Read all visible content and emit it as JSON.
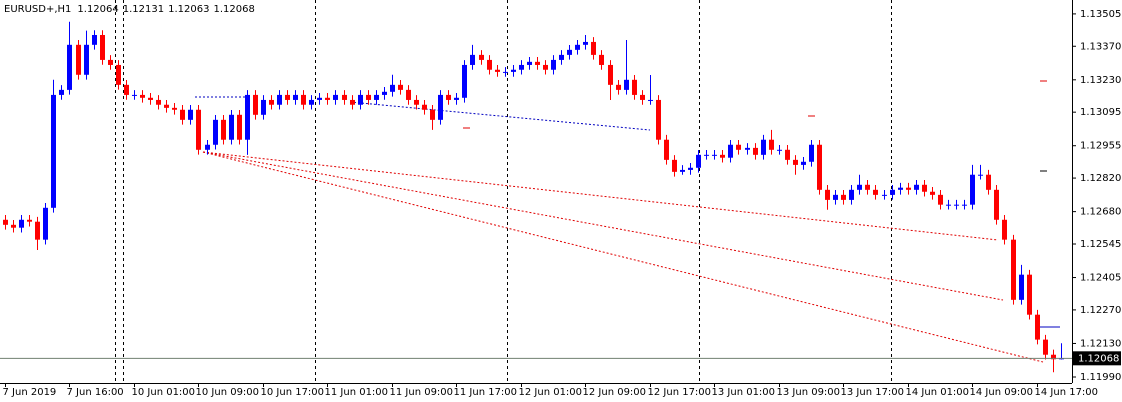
{
  "chart_data": {
    "type": "candlestick",
    "title": "EURUSD+,H1",
    "categories": [
      "7 Jun 2019",
      null,
      null,
      null,
      null,
      null,
      null,
      null,
      "7 Jun 16:00",
      null,
      null,
      null,
      null,
      null,
      null,
      null,
      "10 Jun 01:00",
      null,
      null,
      null,
      null,
      null,
      null,
      null,
      "10 Jun 09:00",
      null,
      null,
      null,
      null,
      null,
      null,
      null,
      "10 Jun 17:00",
      null,
      null,
      null,
      null,
      null,
      null,
      null,
      "11 Jun 01:00",
      null,
      null,
      null,
      null,
      null,
      null,
      null,
      "11 Jun 09:00",
      null,
      null,
      null,
      null,
      null,
      null,
      null,
      "11 Jun 17:00",
      null,
      null,
      null,
      null,
      null,
      null,
      null,
      "12 Jun 01:00",
      null,
      null,
      null,
      null,
      null,
      null,
      null,
      "12 Jun 09:00",
      null,
      null,
      null,
      null,
      null,
      null,
      null,
      "12 Jun 17:00",
      null,
      null,
      null,
      null,
      null,
      null,
      null,
      "13 Jun 01:00",
      null,
      null,
      null,
      null,
      null,
      null,
      null,
      "13 Jun 09:00",
      null,
      null,
      null,
      null,
      null,
      null,
      null,
      "13 Jun 17:00",
      null,
      null,
      null,
      null,
      null,
      null,
      null,
      "14 Jun 01:00",
      null,
      null,
      null,
      null,
      null,
      null,
      null,
      "14 Jun 09:00",
      null,
      null,
      null,
      null,
      null,
      null,
      null,
      "14 Jun 17:00",
      null,
      null,
      null
    ],
    "open": [
      1.12646,
      1.12625,
      1.12613,
      1.12646,
      1.12638,
      1.12563,
      1.12696,
      1.13167,
      1.13188,
      1.13376,
      1.13251,
      1.13376,
      1.13417,
      1.13313,
      1.13292,
      1.13209,
      1.13167,
      1.13167,
      1.13155,
      1.13146,
      1.13126,
      1.13113,
      1.13105,
      1.13063,
      1.13105,
      1.12938,
      1.12959,
      1.13063,
      1.1298,
      1.13084,
      1.1298,
      1.13167,
      1.13084,
      1.13146,
      1.13126,
      1.13167,
      1.13146,
      1.13167,
      1.13126,
      1.13146,
      1.13155,
      1.13146,
      1.13167,
      1.13146,
      1.13126,
      1.13167,
      1.13146,
      1.13167,
      1.1318,
      1.13209,
      1.13188,
      1.13146,
      1.13126,
      1.13105,
      1.13063,
      1.13167,
      1.13146,
      1.13155,
      1.13292,
      1.13334,
      1.13313,
      1.13272,
      1.13263,
      1.13263,
      1.13272,
      1.13292,
      1.13305,
      1.13292,
      1.13272,
      1.13313,
      1.13334,
      1.13355,
      1.13376,
      1.13388,
      1.13334,
      1.13292,
      1.13209,
      1.13188,
      1.1323,
      1.13167,
      1.13146,
      1.13146,
      1.1298,
      1.12896,
      1.12846,
      1.12854,
      1.12863,
      1.12917,
      1.12917,
      1.12917,
      1.12905,
      1.12959,
      1.12938,
      1.12946,
      1.12917,
      1.1298,
      1.12938,
      1.12938,
      1.12896,
      1.12875,
      1.12888,
      1.12959,
      1.12771,
      1.12729,
      1.1275,
      1.12729,
      1.12771,
      1.12792,
      1.12771,
      1.1275,
      1.1275,
      1.12771,
      1.1278,
      1.12771,
      1.12792,
      1.12763,
      1.1275,
      1.12709,
      1.12709,
      1.12709,
      1.12709,
      1.12834,
      1.12834,
      1.12771,
      1.12646,
      1.12563,
      1.12312,
      1.12417,
      1.1225,
      1.12146,
      1.12083,
      1.12064
    ],
    "high": [
      1.12666,
      1.12645,
      1.12666,
      1.12666,
      1.12658,
      1.12716,
      1.1323,
      1.13208,
      1.13472,
      1.13396,
      1.13435,
      1.13437,
      1.13437,
      1.13333,
      1.13312,
      1.13229,
      1.13187,
      1.13187,
      1.13175,
      1.13166,
      1.13146,
      1.13133,
      1.13125,
      1.13125,
      1.13125,
      1.12979,
      1.13083,
      1.13083,
      1.13104,
      1.13104,
      1.13187,
      1.13187,
      1.13166,
      1.13166,
      1.13187,
      1.13187,
      1.13187,
      1.13187,
      1.13166,
      1.13175,
      1.13175,
      1.13187,
      1.13187,
      1.13166,
      1.13187,
      1.13187,
      1.13187,
      1.132,
      1.13251,
      1.13229,
      1.13208,
      1.13166,
      1.13146,
      1.13125,
      1.13187,
      1.13187,
      1.13175,
      1.13312,
      1.13376,
      1.13354,
      1.13333,
      1.13292,
      1.13283,
      1.13292,
      1.13312,
      1.13325,
      1.13325,
      1.13312,
      1.13333,
      1.13354,
      1.13375,
      1.13396,
      1.13417,
      1.13408,
      1.13354,
      1.13312,
      1.13229,
      1.13396,
      1.1325,
      1.13187,
      1.1325,
      1.13166,
      1.13,
      1.12916,
      1.12874,
      1.12883,
      1.12937,
      1.12937,
      1.12937,
      1.12937,
      1.12979,
      1.12979,
      1.12966,
      1.12966,
      1.13,
      1.13021,
      1.12958,
      1.12958,
      1.12916,
      1.12908,
      1.12979,
      1.12979,
      1.12791,
      1.1277,
      1.1277,
      1.12791,
      1.12834,
      1.12812,
      1.12791,
      1.1277,
      1.12791,
      1.128,
      1.128,
      1.12812,
      1.12812,
      1.12783,
      1.1277,
      1.12729,
      1.12729,
      1.12729,
      1.12875,
      1.12875,
      1.12854,
      1.12791,
      1.12666,
      1.12583,
      1.12458,
      1.12437,
      1.1227,
      1.12166,
      1.12104,
      1.12131
    ],
    "low": [
      1.12605,
      1.12593,
      1.12593,
      1.12618,
      1.1252,
      1.12543,
      1.12676,
      1.13147,
      1.13168,
      1.13231,
      1.13231,
      1.13356,
      1.13293,
      1.13272,
      1.13189,
      1.13147,
      1.13147,
      1.13135,
      1.13126,
      1.13106,
      1.13093,
      1.13085,
      1.13043,
      1.13043,
      1.12918,
      1.12918,
      1.12939,
      1.1296,
      1.1296,
      1.1296,
      1.12917,
      1.13064,
      1.13064,
      1.13106,
      1.13106,
      1.13126,
      1.13126,
      1.13106,
      1.13106,
      1.13126,
      1.13126,
      1.13126,
      1.13126,
      1.13106,
      1.13106,
      1.13126,
      1.13126,
      1.13147,
      1.1316,
      1.13168,
      1.13126,
      1.13106,
      1.13085,
      1.13021,
      1.13043,
      1.13126,
      1.13126,
      1.13135,
      1.13272,
      1.13293,
      1.13252,
      1.13243,
      1.13243,
      1.13243,
      1.13252,
      1.13272,
      1.13272,
      1.13252,
      1.13252,
      1.13293,
      1.13314,
      1.13335,
      1.13356,
      1.13314,
      1.13272,
      1.13146,
      1.13168,
      1.13168,
      1.13147,
      1.13126,
      1.13126,
      1.1296,
      1.12876,
      1.12826,
      1.12834,
      1.12834,
      1.12843,
      1.12897,
      1.12897,
      1.12885,
      1.12885,
      1.12918,
      1.12918,
      1.12897,
      1.12897,
      1.12918,
      1.12918,
      1.12876,
      1.12834,
      1.12855,
      1.12868,
      1.12751,
      1.12688,
      1.12709,
      1.12709,
      1.12709,
      1.12751,
      1.12751,
      1.1273,
      1.1273,
      1.1273,
      1.12751,
      1.12751,
      1.12751,
      1.12743,
      1.1273,
      1.12689,
      1.12689,
      1.12689,
      1.12689,
      1.12689,
      1.12814,
      1.12751,
      1.12626,
      1.12543,
      1.12292,
      1.12292,
      1.1223,
      1.12126,
      1.12063,
      1.1201,
      1.12063
    ],
    "close": [
      1.12625,
      1.12613,
      1.12646,
      1.12638,
      1.12563,
      1.12696,
      1.13167,
      1.13188,
      1.13376,
      1.13251,
      1.13376,
      1.13417,
      1.13313,
      1.13292,
      1.13209,
      1.13167,
      1.13167,
      1.13155,
      1.13146,
      1.13126,
      1.13113,
      1.13105,
      1.13063,
      1.13105,
      1.12938,
      1.12959,
      1.13063,
      1.1298,
      1.13084,
      1.1298,
      1.13167,
      1.13084,
      1.13146,
      1.13126,
      1.13167,
      1.13146,
      1.13167,
      1.13126,
      1.13146,
      1.13155,
      1.13146,
      1.13167,
      1.13146,
      1.13126,
      1.13167,
      1.13146,
      1.13167,
      1.1318,
      1.13209,
      1.13188,
      1.13146,
      1.13126,
      1.13105,
      1.13063,
      1.13167,
      1.13146,
      1.13155,
      1.13292,
      1.13334,
      1.13313,
      1.13272,
      1.13263,
      1.13263,
      1.13272,
      1.13292,
      1.13305,
      1.13292,
      1.13272,
      1.13313,
      1.13334,
      1.13355,
      1.13376,
      1.13388,
      1.13334,
      1.13292,
      1.13209,
      1.13188,
      1.1323,
      1.13167,
      1.13146,
      1.13146,
      1.1298,
      1.12896,
      1.12846,
      1.12854,
      1.12863,
      1.12917,
      1.12917,
      1.12917,
      1.12905,
      1.12959,
      1.12938,
      1.12946,
      1.12917,
      1.1298,
      1.12938,
      1.12938,
      1.12896,
      1.12875,
      1.12888,
      1.12959,
      1.12771,
      1.12729,
      1.1275,
      1.12729,
      1.12771,
      1.12792,
      1.12771,
      1.1275,
      1.1275,
      1.12771,
      1.1278,
      1.12771,
      1.12792,
      1.12763,
      1.1275,
      1.12709,
      1.12709,
      1.12709,
      1.12709,
      1.12834,
      1.12834,
      1.12771,
      1.12646,
      1.12563,
      1.12312,
      1.12417,
      1.1225,
      1.12146,
      1.12083,
      1.12064,
      1.12068
    ],
    "up_color": "#0000ff",
    "down_color": "#ff0000",
    "ylim": [
      1.11965,
      1.13563
    ],
    "yticks": [
      1.13505,
      {
        "value": 1.1337,
        "label": "1.13370"
      },
      {
        "value": 1.1323,
        "label": "1.13230"
      },
      1.13095,
      1.12955,
      {
        "value": 1.1282,
        "label": "1.12820"
      },
      {
        "value": 1.1268,
        "label": "1.12680"
      },
      1.12545,
      1.12405,
      {
        "value": 1.1227,
        "label": "1.12270"
      },
      {
        "value": 1.1213,
        "label": "1.12130"
      },
      {
        "value": 1.1199,
        "label": "1.11990"
      }
    ]
  }
}
